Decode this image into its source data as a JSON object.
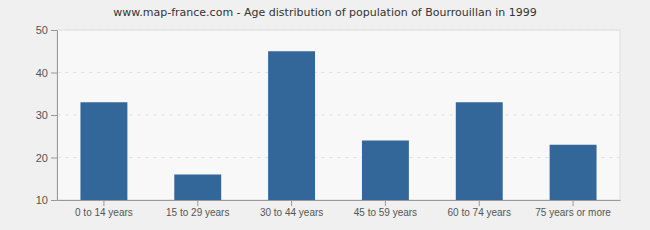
{
  "chart_data": {
    "type": "bar",
    "title": "www.map-france.com - Age distribution of population of Bourrouillan in 1999",
    "categories": [
      "0 to 14 years",
      "15 to 29 years",
      "30 to 44 years",
      "45 to 59 years",
      "60 to 74 years",
      "75 years or more"
    ],
    "values": [
      33,
      16,
      45,
      24,
      33,
      23
    ],
    "color": "#336699",
    "ylim": [
      10,
      50
    ],
    "yticks": [
      10,
      20,
      30,
      40,
      50
    ],
    "grid": true
  }
}
